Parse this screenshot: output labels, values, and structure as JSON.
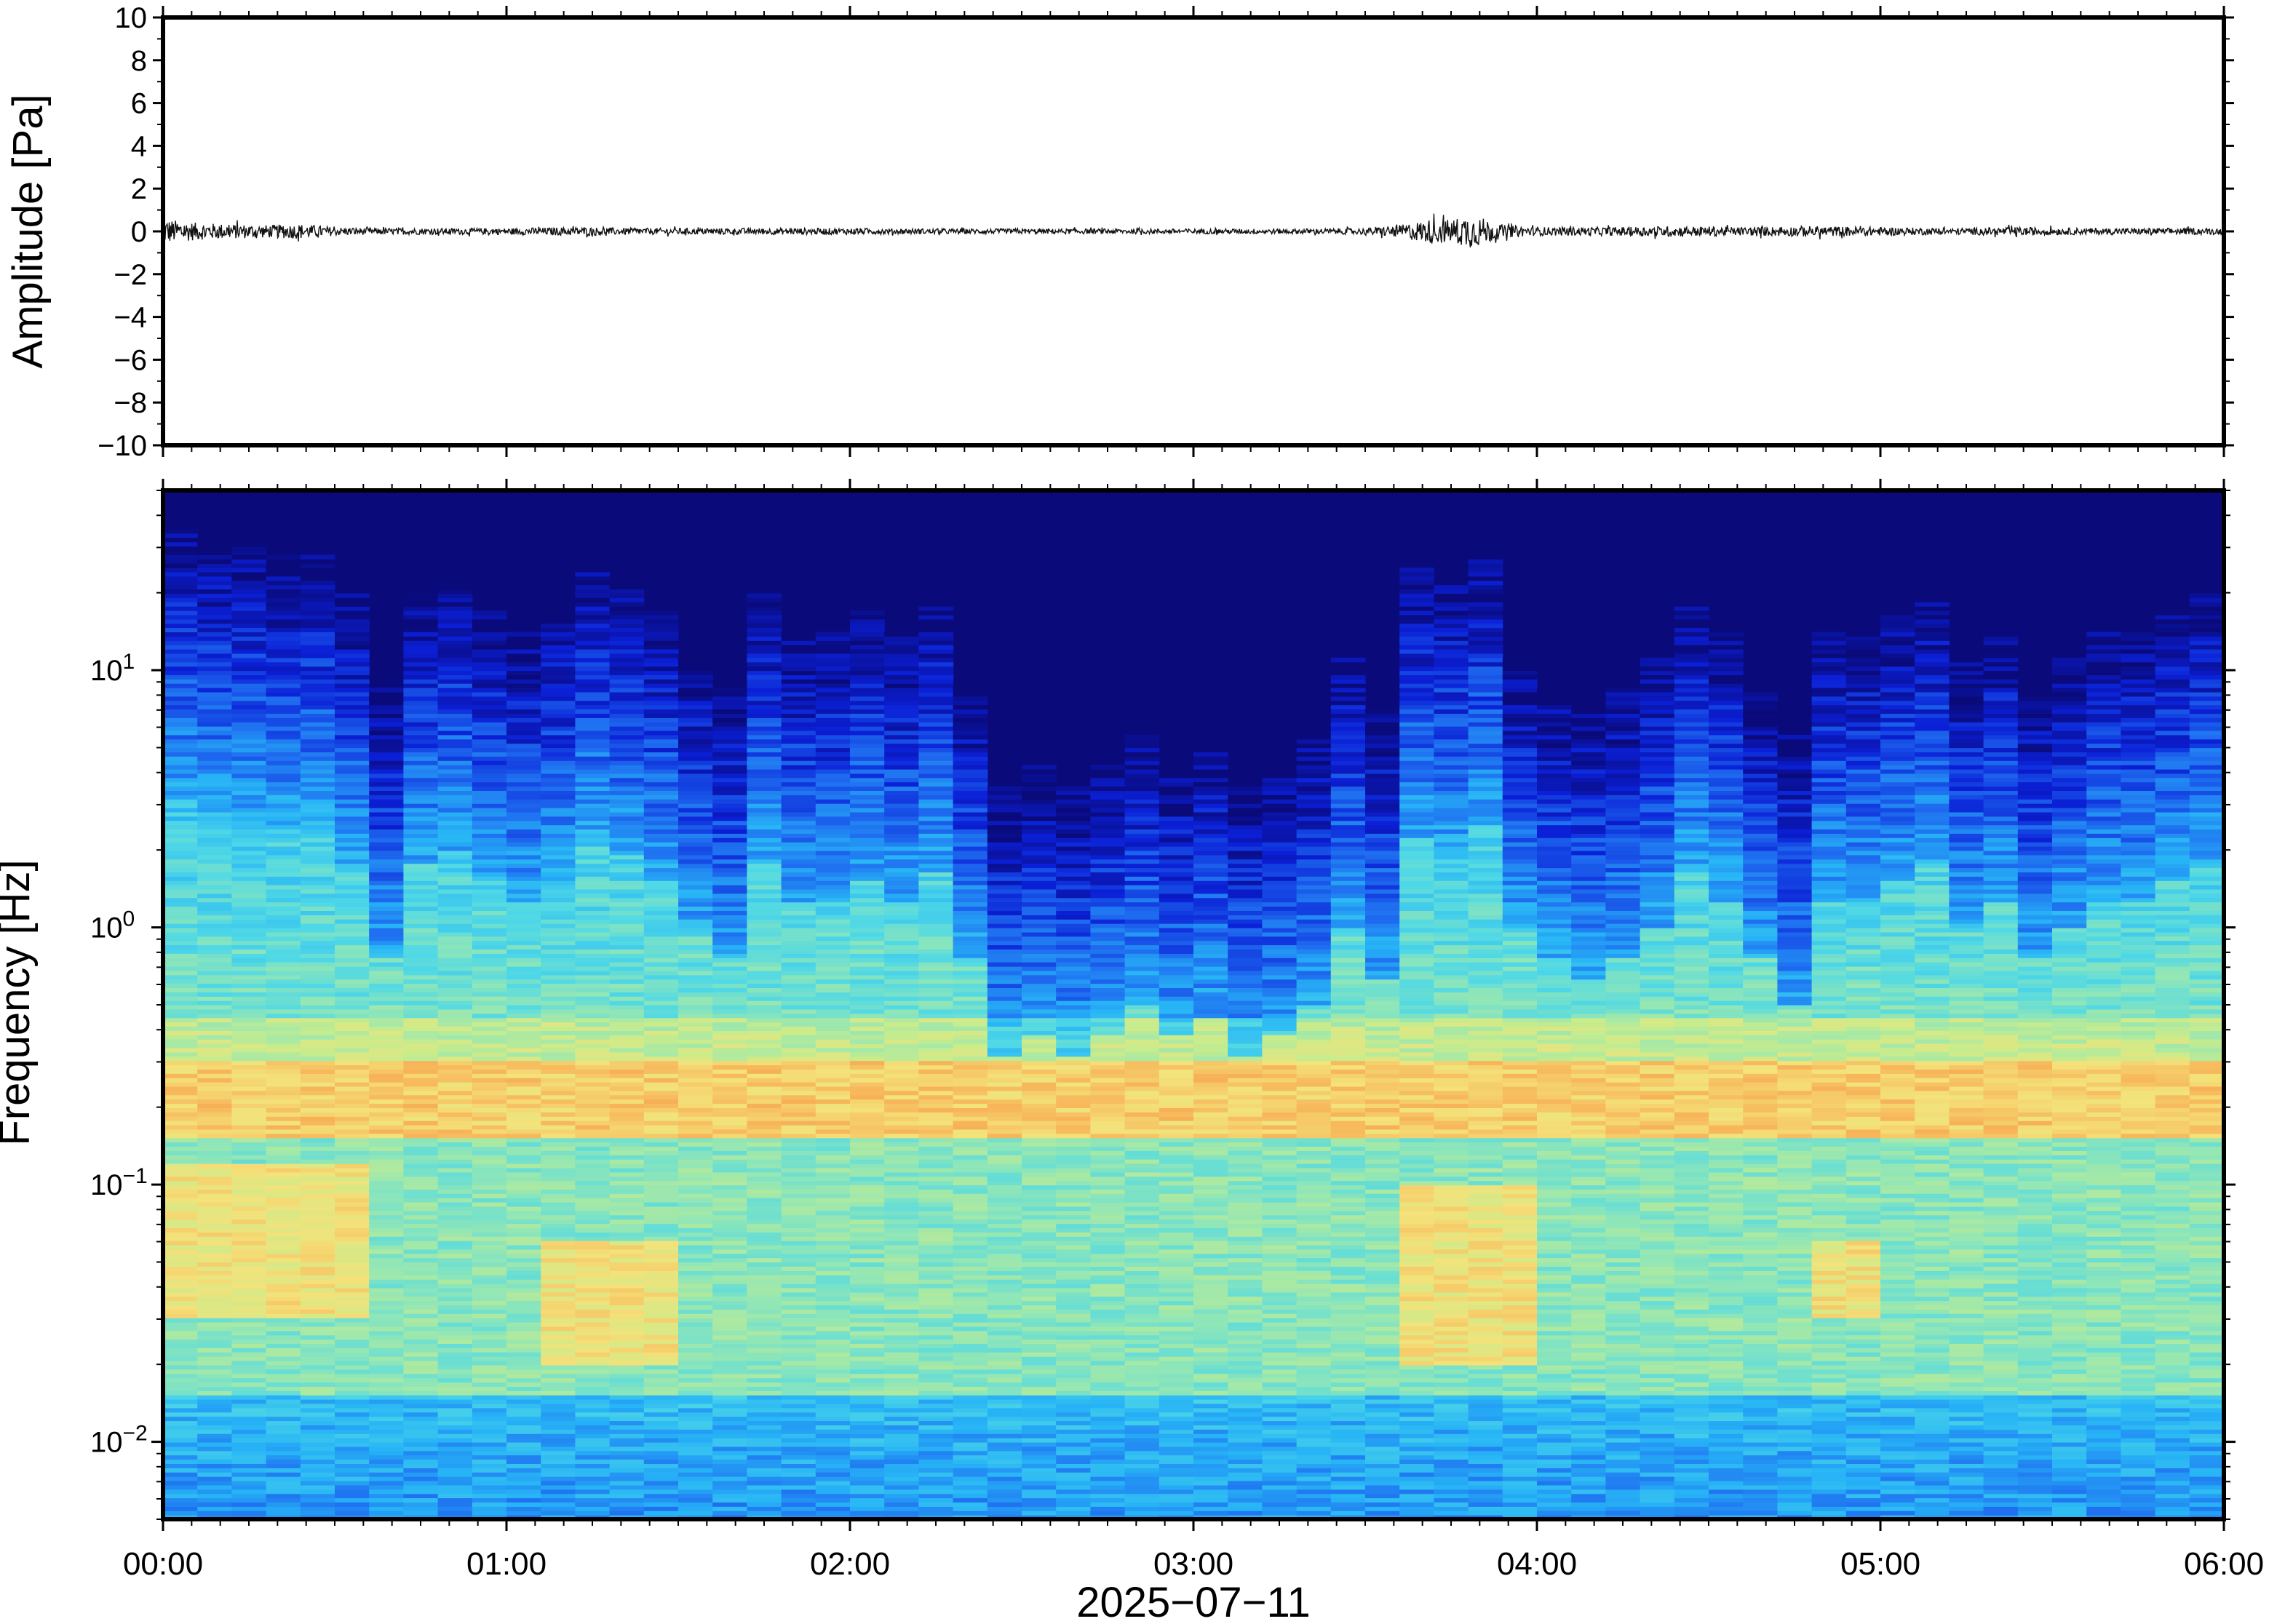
{
  "chart_data": [
    {
      "type": "line",
      "panel": "waveform",
      "ylabel": "Amplitude [Pa]",
      "ylim": [
        -10,
        10
      ],
      "yticks": [
        10,
        8,
        6,
        4,
        2,
        0,
        -2,
        -4,
        -6,
        -8,
        -10
      ],
      "ytick_labels": [
        "10",
        "8",
        "6",
        "4",
        "2",
        "0",
        "−2",
        "−4",
        "−6",
        "−8",
        "−10"
      ],
      "xlim_hours": [
        0,
        6
      ],
      "series": [
        {
          "envelope_hours": [
            0,
            0.05,
            0.1,
            0.2,
            0.3,
            0.4,
            0.5,
            0.6,
            0.8,
            1.0,
            1.2,
            1.4,
            1.6,
            1.8,
            2.0,
            2.3,
            2.6,
            3.0,
            3.3,
            3.5,
            3.6,
            3.65,
            3.7,
            3.75,
            3.8,
            3.85,
            3.9,
            4.0,
            4.2,
            4.4,
            4.6,
            4.8,
            5.0,
            5.2,
            5.4,
            5.6,
            5.8,
            6.0
          ],
          "envelope_pa": [
            0.6,
            0.5,
            0.4,
            0.35,
            0.3,
            0.35,
            0.2,
            0.15,
            0.15,
            0.15,
            0.2,
            0.15,
            0.15,
            0.15,
            0.15,
            0.12,
            0.12,
            0.12,
            0.12,
            0.15,
            0.3,
            0.45,
            0.6,
            0.55,
            0.8,
            0.6,
            0.3,
            0.2,
            0.2,
            0.25,
            0.2,
            0.25,
            0.2,
            0.15,
            0.2,
            0.15,
            0.15,
            0.15
          ]
        }
      ],
      "grid": false
    },
    {
      "type": "heatmap",
      "panel": "spectrogram",
      "ylabel": "Frequency [Hz]",
      "yscale": "log",
      "ylim_hz": [
        0.005,
        50
      ],
      "ytick_values_hz": [
        10,
        1,
        0.1,
        0.01
      ],
      "ytick_base": "10",
      "ytick_exponents": [
        "1",
        "0",
        "−1",
        "−2"
      ],
      "xlabel": "2025−07−11",
      "xlim_hours": [
        0,
        6
      ],
      "xticks_hours": [
        0,
        1,
        2,
        3,
        4,
        5,
        6
      ],
      "xtick_labels": [
        "00:00",
        "01:00",
        "02:00",
        "03:00",
        "04:00",
        "05:00",
        "06:00"
      ],
      "colormap": "jet",
      "colormap_stops": [
        "#0a0a7a",
        "#0b1fd6",
        "#1f6ef0",
        "#27b4f6",
        "#4fd8e6",
        "#8fe6b8",
        "#c8ec8c",
        "#f4e27a",
        "#f7b65a",
        "#f07a3a"
      ],
      "columns_hours": [
        0.0,
        0.1,
        0.2,
        0.3,
        0.4,
        0.5,
        0.6,
        0.7,
        0.8,
        0.9,
        1.0,
        1.1,
        1.2,
        1.3,
        1.4,
        1.5,
        1.6,
        1.7,
        1.8,
        1.9,
        2.0,
        2.1,
        2.2,
        2.3,
        2.4,
        2.5,
        2.6,
        2.7,
        2.8,
        2.9,
        3.0,
        3.1,
        3.2,
        3.3,
        3.4,
        3.5,
        3.6,
        3.7,
        3.8,
        3.9,
        4.0,
        4.1,
        4.2,
        4.3,
        4.4,
        4.5,
        4.6,
        4.7,
        4.8,
        4.9,
        5.0,
        5.1,
        5.2,
        5.3,
        5.4,
        5.5,
        5.6,
        5.7,
        5.8,
        5.9
      ],
      "upper_energy_edge_hz": [
        25,
        22,
        22,
        20,
        20,
        14,
        6,
        14,
        16,
        12,
        10,
        12,
        18,
        15,
        12,
        8,
        6,
        14,
        10,
        10,
        12,
        10,
        13,
        6,
        2.5,
        3,
        2.5,
        3,
        4,
        3,
        3.5,
        2.5,
        3,
        4,
        8,
        5,
        18,
        16,
        20,
        8,
        6,
        5,
        6,
        8,
        14,
        10,
        6,
        4,
        10,
        10,
        12,
        14,
        8,
        10,
        6,
        8,
        10,
        10,
        12,
        14
      ],
      "microseism_band_hz": [
        0.15,
        0.3
      ],
      "low_frequency_highlights": [
        {
          "start_hours": 0.0,
          "end_hours": 0.5,
          "freq_hz": [
            0.03,
            0.12
          ]
        },
        {
          "start_hours": 1.1,
          "end_hours": 1.4,
          "freq_hz": [
            0.02,
            0.06
          ]
        },
        {
          "start_hours": 3.6,
          "end_hours": 3.9,
          "freq_hz": [
            0.02,
            0.1
          ]
        },
        {
          "start_hours": 4.8,
          "end_hours": 4.9,
          "freq_hz": [
            0.03,
            0.06
          ]
        }
      ],
      "grid": false
    }
  ]
}
